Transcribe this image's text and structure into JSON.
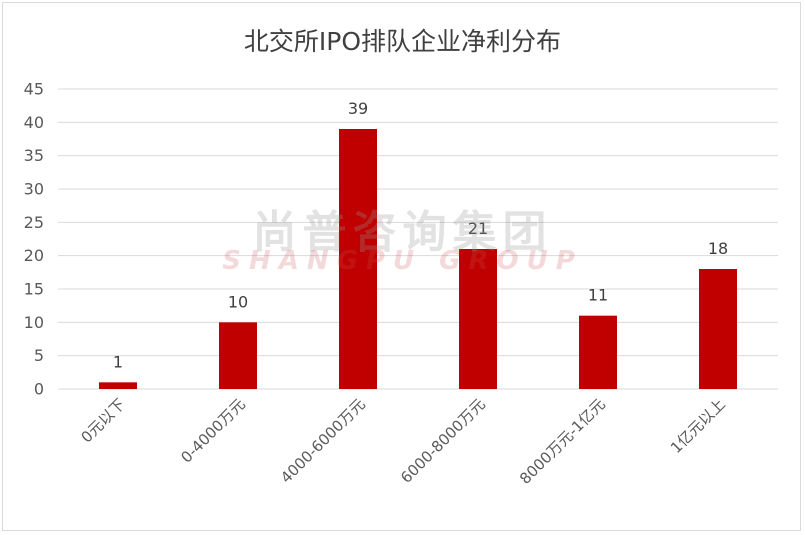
{
  "chart_data": {
    "type": "bar",
    "title": "北交所IPO排队企业净利分布",
    "categories": [
      "0元以下",
      "0-4000万元",
      "4000-6000万元",
      "6000-8000万元",
      "8000万元-1亿元",
      "1亿元以上"
    ],
    "values": [
      1,
      10,
      39,
      21,
      11,
      18
    ],
    "ylim": [
      0,
      45
    ],
    "yticks": [
      0,
      5,
      10,
      15,
      20,
      25,
      30,
      35,
      40,
      45
    ],
    "grid": true,
    "legend": "none",
    "bar_color": "#c00000"
  },
  "watermark": {
    "cn": "尚普咨询集团",
    "en": "SHANGPU GROUP"
  }
}
